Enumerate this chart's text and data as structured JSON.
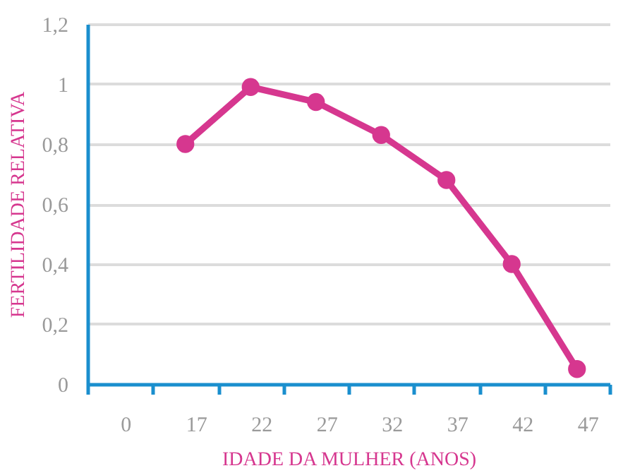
{
  "chart_data": {
    "type": "line",
    "xlabel": "IDADE DA MULHER (ANOS)",
    "ylabel": "FERTILIDADE RELATIVA",
    "categories": [
      "0",
      "17",
      "22",
      "27",
      "32",
      "37",
      "42",
      "47"
    ],
    "series": [
      {
        "color": "#d6378f",
        "values": [
          null,
          0.8,
          0.99,
          0.94,
          0.83,
          0.68,
          0.4,
          0.05
        ]
      }
    ],
    "ylim": [
      0,
      1.2
    ],
    "yticks": [
      {
        "value": 0,
        "label": "0"
      },
      {
        "value": 0.2,
        "label": "0,2"
      },
      {
        "value": 0.4,
        "label": "0,4"
      },
      {
        "value": 0.6,
        "label": "0,6"
      },
      {
        "value": 0.8,
        "label": "0,8"
      },
      {
        "value": 1,
        "label": "1"
      },
      {
        "value": 1.2,
        "label": "1,2"
      }
    ],
    "grid": "y",
    "marker": "circle",
    "line_style": "solid"
  }
}
